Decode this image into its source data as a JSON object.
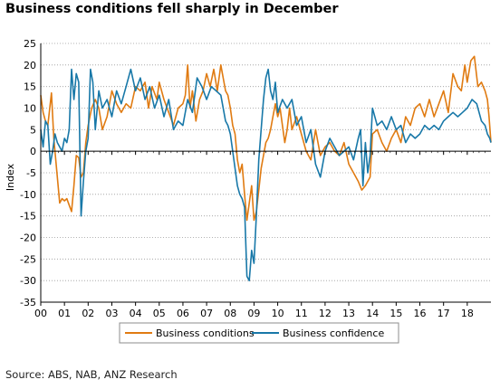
{
  "chart_data": {
    "type": "line",
    "title": "Business conditions fell sharply in December",
    "ylabel": "Index",
    "xlabel": "",
    "ylim": [
      -35,
      25
    ],
    "yticks": [
      25,
      20,
      15,
      10,
      5,
      0,
      -5,
      -10,
      -15,
      -20,
      -25,
      -30,
      -35
    ],
    "xlim": [
      2000.0,
      2019.0
    ],
    "xticks": [
      {
        "x": 2000,
        "label": "00"
      },
      {
        "x": 2001,
        "label": "01"
      },
      {
        "x": 2002,
        "label": "02"
      },
      {
        "x": 2003,
        "label": "03"
      },
      {
        "x": 2004,
        "label": "04"
      },
      {
        "x": 2005,
        "label": "05"
      },
      {
        "x": 2006,
        "label": "06"
      },
      {
        "x": 2007,
        "label": "07"
      },
      {
        "x": 2008,
        "label": "08"
      },
      {
        "x": 2009,
        "label": "09"
      },
      {
        "x": 2010,
        "label": "10"
      },
      {
        "x": 2011,
        "label": "11"
      },
      {
        "x": 2012,
        "label": "12"
      },
      {
        "x": 2013,
        "label": "13"
      },
      {
        "x": 2014,
        "label": "14"
      },
      {
        "x": 2015,
        "label": "15"
      },
      {
        "x": 2016,
        "label": "16"
      },
      {
        "x": 2017,
        "label": "17"
      },
      {
        "x": 2018,
        "label": "18"
      }
    ],
    "grid": "horizontal dotted",
    "legend_position": "bottom",
    "series": [
      {
        "name": "Business conditions",
        "color": "#e07b12",
        "points": [
          [
            2000.0,
            13
          ],
          [
            2000.1,
            9
          ],
          [
            2000.2,
            7
          ],
          [
            2000.3,
            6
          ],
          [
            2000.45,
            13.5
          ],
          [
            2000.55,
            3
          ],
          [
            2000.7,
            -6
          ],
          [
            2000.8,
            -12
          ],
          [
            2000.9,
            -11
          ],
          [
            2001.0,
            -11.5
          ],
          [
            2001.1,
            -11
          ],
          [
            2001.2,
            -12.5
          ],
          [
            2001.3,
            -14
          ],
          [
            2001.4,
            -8
          ],
          [
            2001.5,
            -1
          ],
          [
            2001.6,
            -1.5
          ],
          [
            2001.7,
            -6
          ],
          [
            2001.8,
            -5
          ],
          [
            2001.9,
            2
          ],
          [
            2002.0,
            6
          ],
          [
            2002.15,
            10
          ],
          [
            2002.3,
            12
          ],
          [
            2002.45,
            10
          ],
          [
            2002.6,
            5
          ],
          [
            2002.8,
            8
          ],
          [
            2003.0,
            14
          ],
          [
            2003.2,
            11
          ],
          [
            2003.4,
            9
          ],
          [
            2003.6,
            11
          ],
          [
            2003.8,
            10
          ],
          [
            2004.0,
            15
          ],
          [
            2004.2,
            14
          ],
          [
            2004.4,
            16
          ],
          [
            2004.55,
            10
          ],
          [
            2004.7,
            15
          ],
          [
            2004.9,
            12
          ],
          [
            2005.0,
            16
          ],
          [
            2005.2,
            12
          ],
          [
            2005.4,
            9
          ],
          [
            2005.6,
            6
          ],
          [
            2005.8,
            10
          ],
          [
            2006.0,
            11
          ],
          [
            2006.1,
            13
          ],
          [
            2006.2,
            20
          ],
          [
            2006.3,
            10
          ],
          [
            2006.4,
            14
          ],
          [
            2006.55,
            7
          ],
          [
            2006.7,
            12
          ],
          [
            2006.85,
            14
          ],
          [
            2007.0,
            18
          ],
          [
            2007.15,
            15
          ],
          [
            2007.3,
            19
          ],
          [
            2007.45,
            14
          ],
          [
            2007.6,
            20
          ],
          [
            2007.7,
            17
          ],
          [
            2007.8,
            14
          ],
          [
            2007.9,
            13
          ],
          [
            2008.0,
            10
          ],
          [
            2008.1,
            6
          ],
          [
            2008.2,
            4
          ],
          [
            2008.3,
            -2
          ],
          [
            2008.4,
            -5
          ],
          [
            2008.5,
            -3
          ],
          [
            2008.6,
            -10
          ],
          [
            2008.7,
            -16
          ],
          [
            2008.8,
            -12
          ],
          [
            2008.9,
            -8
          ],
          [
            2009.0,
            -16
          ],
          [
            2009.1,
            -14
          ],
          [
            2009.2,
            -9
          ],
          [
            2009.3,
            -4
          ],
          [
            2009.4,
            -1
          ],
          [
            2009.5,
            2
          ],
          [
            2009.6,
            3
          ],
          [
            2009.7,
            5
          ],
          [
            2009.8,
            8
          ],
          [
            2009.9,
            11
          ],
          [
            2010.0,
            8
          ],
          [
            2010.1,
            10
          ],
          [
            2010.2,
            6
          ],
          [
            2010.3,
            2
          ],
          [
            2010.4,
            5
          ],
          [
            2010.5,
            10
          ],
          [
            2010.6,
            5
          ],
          [
            2010.8,
            8
          ],
          [
            2011.0,
            4
          ],
          [
            2011.2,
            0
          ],
          [
            2011.4,
            -2
          ],
          [
            2011.6,
            5
          ],
          [
            2011.8,
            -1
          ],
          [
            2012.0,
            1
          ],
          [
            2012.2,
            2
          ],
          [
            2012.4,
            0
          ],
          [
            2012.6,
            -1
          ],
          [
            2012.8,
            2
          ],
          [
            2013.0,
            -3
          ],
          [
            2013.2,
            -5
          ],
          [
            2013.4,
            -7
          ],
          [
            2013.55,
            -9
          ],
          [
            2013.7,
            -8
          ],
          [
            2013.9,
            -6
          ],
          [
            2014.0,
            4
          ],
          [
            2014.2,
            5
          ],
          [
            2014.4,
            2
          ],
          [
            2014.6,
            0
          ],
          [
            2014.8,
            3
          ],
          [
            2015.0,
            5
          ],
          [
            2015.2,
            2
          ],
          [
            2015.4,
            8
          ],
          [
            2015.6,
            6
          ],
          [
            2015.8,
            10
          ],
          [
            2016.0,
            11
          ],
          [
            2016.2,
            8
          ],
          [
            2016.4,
            12
          ],
          [
            2016.6,
            8
          ],
          [
            2016.8,
            11
          ],
          [
            2017.0,
            14
          ],
          [
            2017.2,
            9
          ],
          [
            2017.4,
            18
          ],
          [
            2017.6,
            15
          ],
          [
            2017.75,
            14
          ],
          [
            2017.9,
            20
          ],
          [
            2018.0,
            16
          ],
          [
            2018.15,
            21
          ],
          [
            2018.3,
            22
          ],
          [
            2018.45,
            15
          ],
          [
            2018.6,
            16
          ],
          [
            2018.75,
            14
          ],
          [
            2018.85,
            12
          ],
          [
            2018.92,
            8
          ],
          [
            2019.0,
            2
          ]
        ]
      },
      {
        "name": "Business confidence",
        "color": "#1878a8",
        "points": [
          [
            2000.0,
            5
          ],
          [
            2000.1,
            1
          ],
          [
            2000.2,
            7
          ],
          [
            2000.3,
            6
          ],
          [
            2000.4,
            -3
          ],
          [
            2000.5,
            0
          ],
          [
            2000.6,
            4
          ],
          [
            2000.7,
            2
          ],
          [
            2000.8,
            1
          ],
          [
            2000.9,
            0
          ],
          [
            2001.0,
            3
          ],
          [
            2001.1,
            2
          ],
          [
            2001.2,
            5
          ],
          [
            2001.3,
            19
          ],
          [
            2001.4,
            12
          ],
          [
            2001.5,
            18
          ],
          [
            2001.6,
            16
          ],
          [
            2001.7,
            -15
          ],
          [
            2001.8,
            -7
          ],
          [
            2001.9,
            0
          ],
          [
            2002.0,
            3
          ],
          [
            2002.1,
            19
          ],
          [
            2002.2,
            16
          ],
          [
            2002.3,
            5
          ],
          [
            2002.45,
            14
          ],
          [
            2002.6,
            10
          ],
          [
            2002.8,
            12
          ],
          [
            2003.0,
            8
          ],
          [
            2003.2,
            14
          ],
          [
            2003.4,
            11
          ],
          [
            2003.6,
            15
          ],
          [
            2003.8,
            19
          ],
          [
            2004.0,
            14
          ],
          [
            2004.2,
            17
          ],
          [
            2004.4,
            12
          ],
          [
            2004.6,
            15
          ],
          [
            2004.8,
            10
          ],
          [
            2005.0,
            13
          ],
          [
            2005.2,
            8
          ],
          [
            2005.4,
            12
          ],
          [
            2005.6,
            5
          ],
          [
            2005.8,
            7
          ],
          [
            2006.0,
            6
          ],
          [
            2006.2,
            12
          ],
          [
            2006.4,
            9
          ],
          [
            2006.6,
            17
          ],
          [
            2006.8,
            15
          ],
          [
            2007.0,
            12
          ],
          [
            2007.2,
            15
          ],
          [
            2007.4,
            14
          ],
          [
            2007.6,
            13
          ],
          [
            2007.8,
            7
          ],
          [
            2007.9,
            6
          ],
          [
            2008.0,
            4
          ],
          [
            2008.1,
            0
          ],
          [
            2008.2,
            -4
          ],
          [
            2008.3,
            -8
          ],
          [
            2008.4,
            -10
          ],
          [
            2008.5,
            -11
          ],
          [
            2008.6,
            -13
          ],
          [
            2008.7,
            -29
          ],
          [
            2008.8,
            -30
          ],
          [
            2008.9,
            -23
          ],
          [
            2009.0,
            -26
          ],
          [
            2009.1,
            -15
          ],
          [
            2009.2,
            -2
          ],
          [
            2009.3,
            5
          ],
          [
            2009.4,
            12
          ],
          [
            2009.5,
            17
          ],
          [
            2009.6,
            19
          ],
          [
            2009.7,
            14
          ],
          [
            2009.8,
            12
          ],
          [
            2009.9,
            16
          ],
          [
            2010.0,
            9
          ],
          [
            2010.2,
            12
          ],
          [
            2010.4,
            10
          ],
          [
            2010.6,
            12
          ],
          [
            2010.8,
            6
          ],
          [
            2011.0,
            8
          ],
          [
            2011.2,
            2
          ],
          [
            2011.4,
            5
          ],
          [
            2011.6,
            -3
          ],
          [
            2011.8,
            -6
          ],
          [
            2012.0,
            0
          ],
          [
            2012.2,
            3
          ],
          [
            2012.4,
            1
          ],
          [
            2012.6,
            -1
          ],
          [
            2012.8,
            0
          ],
          [
            2013.0,
            1
          ],
          [
            2013.2,
            -2
          ],
          [
            2013.4,
            3
          ],
          [
            2013.5,
            5
          ],
          [
            2013.6,
            -8
          ],
          [
            2013.7,
            2
          ],
          [
            2013.8,
            -5
          ],
          [
            2013.9,
            -1
          ],
          [
            2014.0,
            10
          ],
          [
            2014.1,
            8
          ],
          [
            2014.2,
            6
          ],
          [
            2014.4,
            7
          ],
          [
            2014.6,
            5
          ],
          [
            2014.8,
            8
          ],
          [
            2015.0,
            5
          ],
          [
            2015.2,
            6
          ],
          [
            2015.4,
            2
          ],
          [
            2015.6,
            4
          ],
          [
            2015.8,
            3
          ],
          [
            2016.0,
            4
          ],
          [
            2016.2,
            6
          ],
          [
            2016.4,
            5
          ],
          [
            2016.6,
            6
          ],
          [
            2016.8,
            5
          ],
          [
            2017.0,
            7
          ],
          [
            2017.2,
            8
          ],
          [
            2017.4,
            9
          ],
          [
            2017.6,
            8
          ],
          [
            2017.8,
            9
          ],
          [
            2018.0,
            10
          ],
          [
            2018.2,
            12
          ],
          [
            2018.4,
            11
          ],
          [
            2018.6,
            7
          ],
          [
            2018.75,
            6
          ],
          [
            2018.85,
            4
          ],
          [
            2018.95,
            3
          ],
          [
            2019.0,
            2
          ]
        ]
      }
    ]
  },
  "source_text": "Source: ABS, NAB, ANZ Research"
}
